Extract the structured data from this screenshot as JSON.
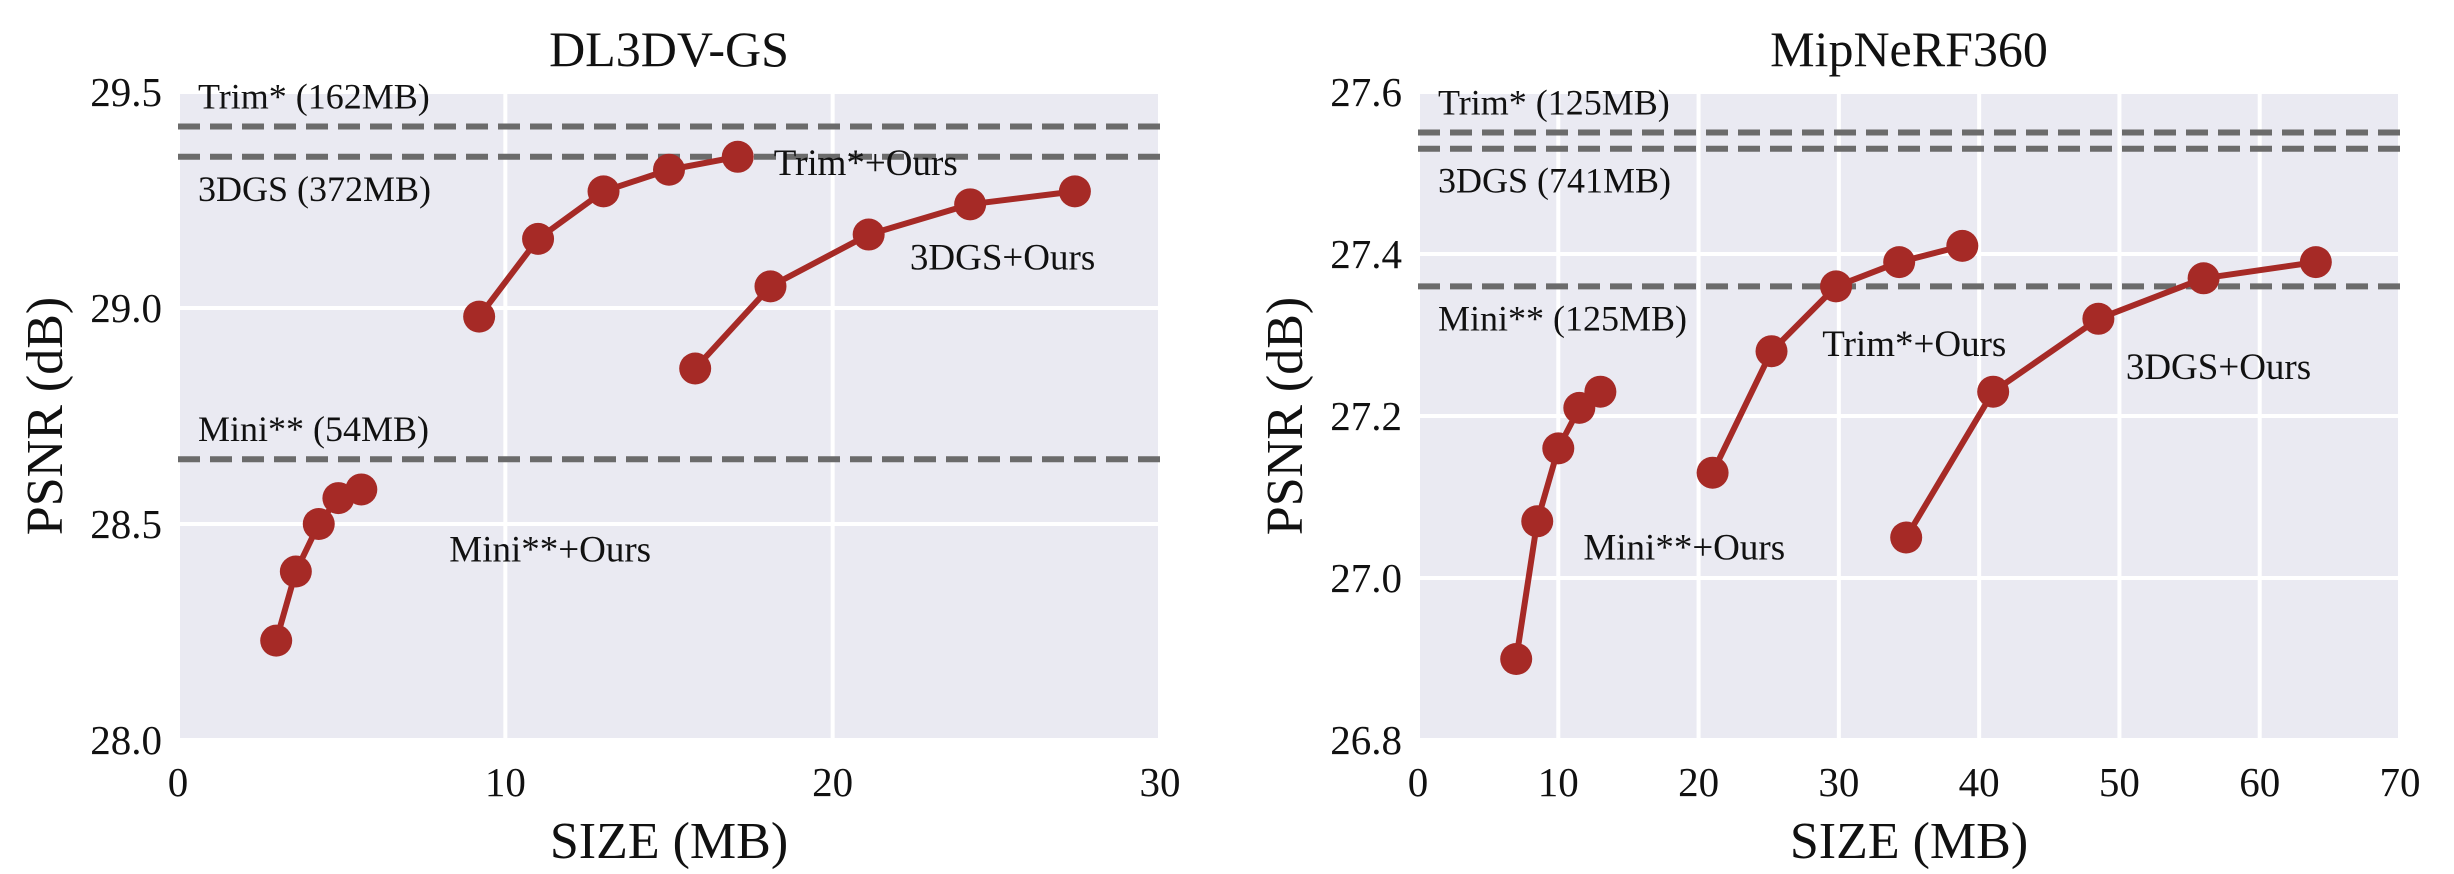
{
  "colors": {
    "panel_bg": "#eaeaf2",
    "grid": "#ffffff",
    "series": "#a62a26",
    "reference": "#6b6b6b"
  },
  "chart_data": [
    {
      "type": "line",
      "title": "DL3DV-GS",
      "xlabel": "SIZE (MB)",
      "ylabel": "PSNR (dB)",
      "xlim": [
        0,
        30
      ],
      "ylim": [
        28.0,
        29.5
      ],
      "xticks": [
        0,
        10,
        20,
        30
      ],
      "yticks": [
        28.0,
        28.5,
        29.0,
        29.5
      ],
      "xtick_labels": [
        "0",
        "10",
        "20",
        "30"
      ],
      "ytick_labels": [
        "28.0",
        "28.5",
        "29.0",
        "29.5"
      ],
      "grid": true,
      "references": [
        {
          "label": "Trim* (162MB)",
          "y": 29.42,
          "label_pos": "above"
        },
        {
          "label": "3DGS (372MB)",
          "y": 29.35,
          "label_pos": "below"
        },
        {
          "label": "Mini** (54MB)",
          "y": 28.65,
          "label_pos": "above"
        }
      ],
      "series": [
        {
          "name": "Mini**+Ours",
          "x": [
            3.0,
            3.6,
            4.3,
            4.9,
            5.6
          ],
          "y": [
            28.23,
            28.39,
            28.5,
            28.56,
            28.58
          ]
        },
        {
          "name": "Trim*+Ours",
          "x": [
            9.2,
            11.0,
            13.0,
            15.0,
            17.1
          ],
          "y": [
            28.98,
            29.16,
            29.27,
            29.32,
            29.35
          ]
        },
        {
          "name": "3DGS+Ours",
          "x": [
            15.8,
            18.1,
            21.1,
            24.2,
            27.4
          ],
          "y": [
            28.86,
            29.05,
            29.17,
            29.24,
            29.27
          ]
        }
      ]
    },
    {
      "type": "line",
      "title": "MipNeRF360",
      "xlabel": "SIZE (MB)",
      "ylabel": "PSNR (dB)",
      "xlim": [
        0,
        70
      ],
      "ylim": [
        26.8,
        27.6
      ],
      "xticks": [
        0,
        10,
        20,
        30,
        40,
        50,
        60,
        70
      ],
      "yticks": [
        26.8,
        27.0,
        27.2,
        27.4,
        27.6
      ],
      "xtick_labels": [
        "0",
        "10",
        "20",
        "30",
        "40",
        "50",
        "60",
        "70"
      ],
      "ytick_labels": [
        "26.8",
        "27.0",
        "27.2",
        "27.4",
        "27.6"
      ],
      "grid": true,
      "references": [
        {
          "label": "Trim* (125MB)",
          "y": 27.55,
          "label_pos": "above"
        },
        {
          "label": "3DGS (741MB)",
          "y": 27.53,
          "label_pos": "below"
        },
        {
          "label": "Mini** (125MB)",
          "y": 27.36,
          "label_pos": "below"
        }
      ],
      "series": [
        {
          "name": "Mini**+Ours",
          "x": [
            7.0,
            8.5,
            10.0,
            11.5,
            13.0
          ],
          "y": [
            26.9,
            27.07,
            27.16,
            27.21,
            27.23
          ]
        },
        {
          "name": "Trim*+Ours",
          "x": [
            21.0,
            25.2,
            29.8,
            34.3,
            38.8
          ],
          "y": [
            27.13,
            27.28,
            27.36,
            27.39,
            27.41
          ]
        },
        {
          "name": "3DGS+Ours",
          "x": [
            34.8,
            41.0,
            48.5,
            56.0,
            64.0
          ],
          "y": [
            27.05,
            27.23,
            27.32,
            27.37,
            27.39
          ]
        }
      ]
    }
  ]
}
